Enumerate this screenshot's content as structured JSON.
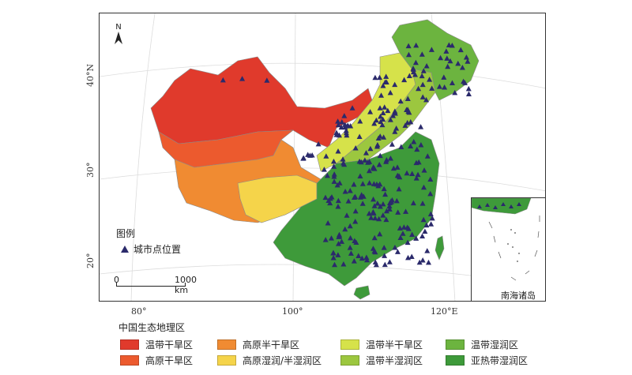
{
  "map": {
    "north_label": "N",
    "lon_labels": [
      "80°",
      "100°",
      "120°E"
    ],
    "lat_labels": [
      "40°N",
      "30°",
      "20°"
    ],
    "inset_label": "南海诸岛"
  },
  "legend": {
    "title": "图例",
    "city_label": "城市点位置",
    "city_color": "#2b2a6b"
  },
  "scale_bar": {
    "start": "0",
    "end": "1000 km"
  },
  "eco_regions": {
    "title": "中国生态地理区",
    "items": [
      {
        "label": "温带干旱区",
        "color": "#e03a2c"
      },
      {
        "label": "高原干旱区",
        "color": "#ec5a2e"
      },
      {
        "label": "高原半干旱区",
        "color": "#f08b32"
      },
      {
        "label": "高原湿润/半湿润区",
        "color": "#f5d44a"
      },
      {
        "label": "温带半干旱区",
        "color": "#d6e24a"
      },
      {
        "label": "温带半湿润区",
        "color": "#9cc73f"
      },
      {
        "label": "温带湿润区",
        "color": "#6cb43f"
      },
      {
        "label": "亚热带湿润区",
        "color": "#3e9a3a"
      }
    ]
  }
}
